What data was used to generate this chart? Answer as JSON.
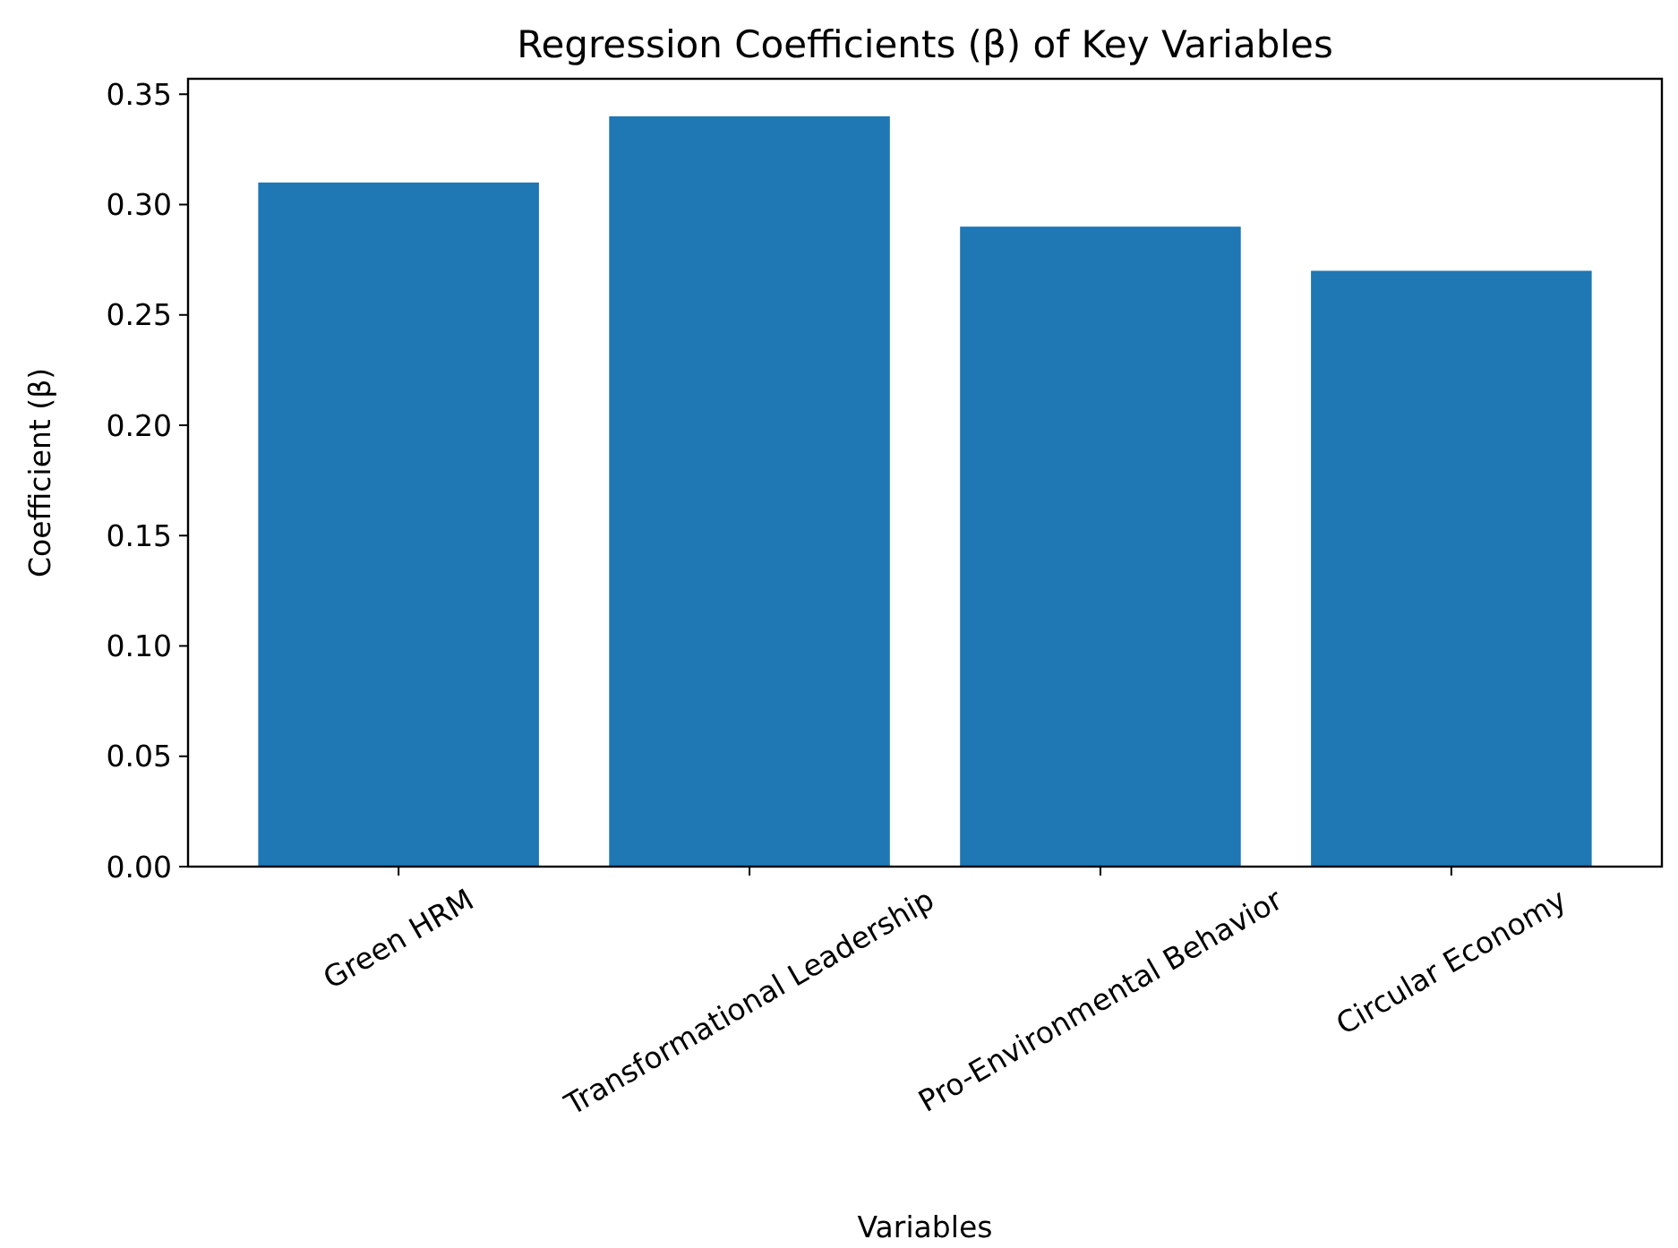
{
  "chart_data": {
    "type": "bar",
    "title": "Regression Coefficients (β) of Key Variables",
    "xlabel": "Variables",
    "ylabel": "Coefficient (β)",
    "categories": [
      "Green HRM",
      "Transformational Leadership",
      "Pro-Environmental Behavior",
      "Circular Economy"
    ],
    "values": [
      0.31,
      0.34,
      0.29,
      0.27
    ],
    "color": "#1f77b4",
    "ylim": [
      0,
      0.357
    ],
    "yticks": [
      {
        "value": 0,
        "label": "0.00"
      },
      {
        "value": 0.05,
        "label": "0.05"
      },
      {
        "value": 0.1,
        "label": "0.10"
      },
      {
        "value": 0.15,
        "label": "0.15"
      },
      {
        "value": 0.2,
        "label": "0.20"
      },
      {
        "value": 0.25,
        "label": "0.25"
      },
      {
        "value": 0.3,
        "label": "0.30"
      },
      {
        "value": 0.35,
        "label": "0.35"
      }
    ],
    "grid": false
  }
}
